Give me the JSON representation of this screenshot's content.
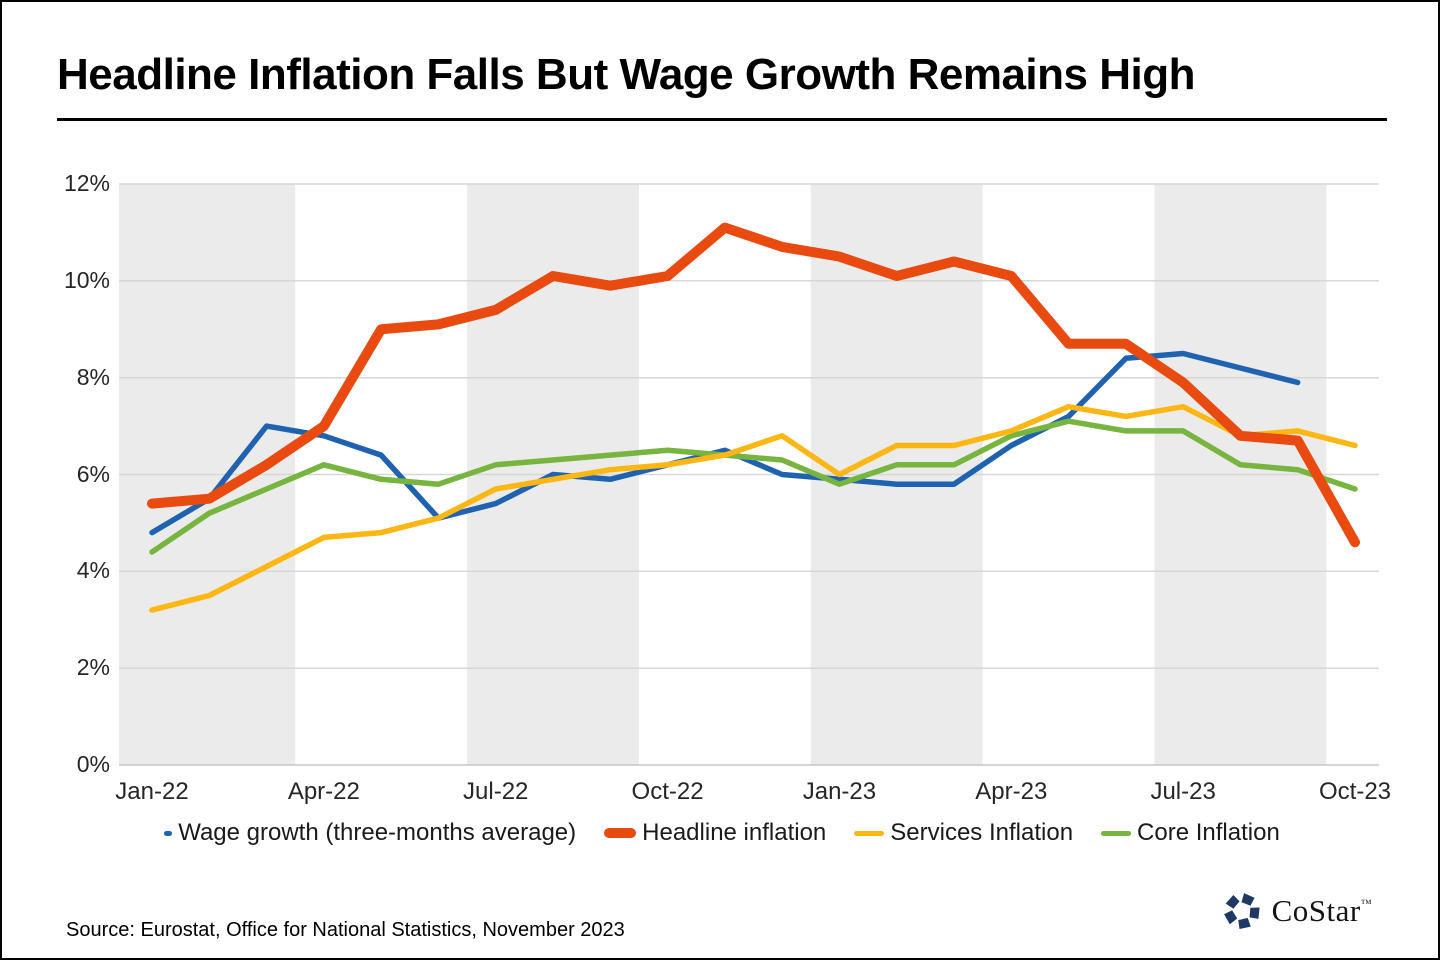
{
  "page": {
    "title": "Headline Inflation Falls But Wage Growth Remains High",
    "source": "Source: Eurostat, Office for National Statistics, November 2023",
    "logo": {
      "brand": "CoStar",
      "tm": "™"
    }
  },
  "colors": {
    "wage_growth": "#1E62B0",
    "headline": "#E84A0F",
    "services": "#FDB714",
    "core": "#77B440",
    "quarter_band": "#EBEBEB",
    "gridline": "#D7D7D7",
    "axis_line": "#C6C6C6",
    "axis_text": "#262626",
    "logo_navy": "#1F3864"
  },
  "chart_data": {
    "type": "line",
    "x_categories": [
      "Jan-22",
      "Feb-22",
      "Mar-22",
      "Apr-22",
      "May-22",
      "Jun-22",
      "Jul-22",
      "Aug-22",
      "Sep-22",
      "Oct-22",
      "Nov-22",
      "Dec-22",
      "Jan-23",
      "Feb-23",
      "Mar-23",
      "Apr-23",
      "May-23",
      "Jun-23",
      "Jul-23",
      "Aug-23",
      "Sep-23",
      "Oct-23"
    ],
    "x_tick_labels": [
      "Jan-22",
      "Apr-22",
      "Jul-22",
      "Oct-22",
      "Jan-23",
      "Apr-23",
      "Jul-23",
      "Oct-23"
    ],
    "x_tick_indices": [
      0,
      3,
      6,
      9,
      12,
      15,
      18,
      21
    ],
    "y_ticks": [
      {
        "value": 12,
        "label": "12%"
      },
      {
        "value": 10,
        "label": "10%"
      },
      {
        "value": 8,
        "label": "8%"
      },
      {
        "value": 6,
        "label": "6%"
      },
      {
        "value": 4,
        "label": "4%"
      },
      {
        "value": 2,
        "label": "2%"
      },
      {
        "value": 0,
        "label": "0%"
      }
    ],
    "ylim": [
      0,
      12
    ],
    "grid": "horizontal",
    "background_bands": "alternating light-gray quarterly bands starting gray at Jan-22",
    "legend_position": "bottom",
    "series": [
      {
        "name": "Wage growth (three-months average)",
        "color": "#1E62B0",
        "stroke_width": 5.5,
        "legend_marker": "small-stub",
        "values": [
          4.8,
          5.5,
          7.0,
          6.8,
          6.4,
          5.1,
          5.4,
          6.0,
          5.9,
          6.2,
          6.5,
          6.0,
          5.9,
          5.8,
          5.8,
          6.6,
          7.2,
          8.4,
          8.5,
          8.2,
          7.9,
          null
        ]
      },
      {
        "name": "Headline inflation",
        "color": "#E84A0F",
        "stroke_width": 10,
        "legend_marker": "thick-dash",
        "values": [
          5.4,
          5.5,
          6.2,
          7.0,
          9.0,
          9.1,
          9.4,
          10.1,
          9.9,
          10.1,
          11.1,
          10.7,
          10.5,
          10.1,
          10.4,
          10.1,
          8.7,
          8.7,
          7.9,
          6.8,
          6.7,
          4.6
        ]
      },
      {
        "name": "Services Inflation",
        "color": "#FDB714",
        "stroke_width": 5.5,
        "legend_marker": "dash",
        "values": [
          3.2,
          3.5,
          4.1,
          4.7,
          4.8,
          5.1,
          5.7,
          5.9,
          6.1,
          6.2,
          6.4,
          6.8,
          6.0,
          6.6,
          6.6,
          6.9,
          7.4,
          7.2,
          7.4,
          6.8,
          6.9,
          6.6
        ]
      },
      {
        "name": "Core Inflation",
        "color": "#77B440",
        "stroke_width": 5.5,
        "legend_marker": "dash",
        "values": [
          4.4,
          5.2,
          5.7,
          6.2,
          5.9,
          5.8,
          6.2,
          6.3,
          6.4,
          6.5,
          6.4,
          6.3,
          5.8,
          6.2,
          6.2,
          6.8,
          7.1,
          6.9,
          6.9,
          6.2,
          6.1,
          5.7
        ]
      }
    ]
  }
}
